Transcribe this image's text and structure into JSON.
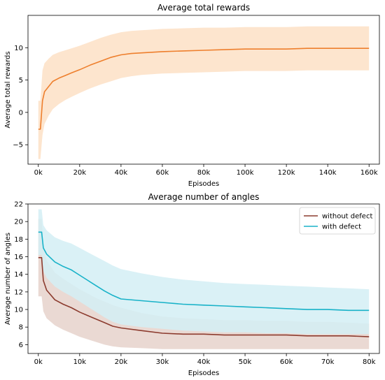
{
  "chart_data": [
    {
      "type": "line",
      "title": "Average total rewards",
      "xlabel": "Episodes",
      "ylabel": "Average total rewards",
      "xlim": [
        -5,
        165
      ],
      "ylim": [
        -8,
        15
      ],
      "x_unit": "k",
      "x_ticks": [
        0,
        20,
        40,
        60,
        80,
        100,
        120,
        140,
        160
      ],
      "x_tick_labels": [
        "0k",
        "20k",
        "40k",
        "60k",
        "80k",
        "100k",
        "120k",
        "140k",
        "160k"
      ],
      "y_ticks": [
        -5,
        0,
        5,
        10
      ],
      "y_tick_labels": [
        "−5",
        "0",
        "5",
        "10"
      ],
      "grid": false,
      "legend": null,
      "series": [
        {
          "color": "#ee7f2d",
          "band_color": "#fde0c6",
          "x": [
            0,
            1,
            2,
            3,
            5,
            7,
            10,
            13,
            16,
            20,
            25,
            30,
            35,
            40,
            45,
            50,
            55,
            60,
            70,
            80,
            90,
            100,
            110,
            120,
            130,
            140,
            150,
            160
          ],
          "y": [
            -2.6,
            -2.6,
            1.8,
            3.2,
            4.0,
            4.8,
            5.3,
            5.7,
            6.1,
            6.6,
            7.3,
            7.9,
            8.5,
            8.9,
            9.1,
            9.2,
            9.3,
            9.4,
            9.5,
            9.6,
            9.7,
            9.8,
            9.8,
            9.8,
            9.9,
            9.9,
            9.9,
            9.9
          ],
          "y_lower": [
            -7.2,
            -7.2,
            -3.5,
            -1.8,
            -0.5,
            0.5,
            1.3,
            1.9,
            2.4,
            3.0,
            3.7,
            4.3,
            4.8,
            5.3,
            5.6,
            5.8,
            5.9,
            6.0,
            6.1,
            6.2,
            6.3,
            6.4,
            6.4,
            6.4,
            6.5,
            6.5,
            6.5,
            6.5
          ],
          "y_upper": [
            1.8,
            1.8,
            6.5,
            7.6,
            8.3,
            8.9,
            9.3,
            9.6,
            9.9,
            10.3,
            10.9,
            11.5,
            12.0,
            12.4,
            12.6,
            12.7,
            12.8,
            12.9,
            13.0,
            13.1,
            13.1,
            13.2,
            13.2,
            13.2,
            13.3,
            13.3,
            13.3,
            13.3
          ]
        }
      ]
    },
    {
      "type": "line",
      "title": "Average number of angles",
      "xlabel": "Episodes",
      "ylabel": "Average number of angles",
      "xlim": [
        -2.5,
        82.5
      ],
      "ylim": [
        5,
        22
      ],
      "x_unit": "k",
      "x_ticks": [
        0,
        10,
        20,
        30,
        40,
        50,
        60,
        70,
        80
      ],
      "x_tick_labels": [
        "0k",
        "10k",
        "20k",
        "30k",
        "40k",
        "50k",
        "60k",
        "70k",
        "80k"
      ],
      "y_ticks": [
        6,
        8,
        10,
        12,
        14,
        16,
        18,
        20,
        22
      ],
      "y_tick_labels": [
        "6",
        "8",
        "10",
        "12",
        "14",
        "16",
        "18",
        "20",
        "22"
      ],
      "grid": false,
      "legend": "top-right",
      "series": [
        {
          "name": "without defect",
          "color": "#8c3b2e",
          "band_color": "#e6d2cb",
          "x": [
            0,
            0.8,
            1.2,
            2,
            4,
            6,
            8,
            10,
            12,
            14,
            16,
            18,
            20,
            25,
            30,
            35,
            40,
            45,
            50,
            55,
            60,
            65,
            70,
            75,
            80
          ],
          "y": [
            15.9,
            15.9,
            13.3,
            12.2,
            11.1,
            10.6,
            10.2,
            9.7,
            9.3,
            8.9,
            8.5,
            8.1,
            7.9,
            7.6,
            7.3,
            7.2,
            7.2,
            7.1,
            7.1,
            7.1,
            7.1,
            7.0,
            7.0,
            7.0,
            6.9
          ],
          "y_lower": [
            11.5,
            11.5,
            9.8,
            9.0,
            8.2,
            7.7,
            7.3,
            6.9,
            6.6,
            6.3,
            6.0,
            5.8,
            5.7,
            5.6,
            5.5,
            5.5,
            5.5,
            5.5,
            5.5,
            5.5,
            5.5,
            5.5,
            5.5,
            5.5,
            5.5
          ],
          "y_upper": [
            20.3,
            20.3,
            17.0,
            15.6,
            14.2,
            13.5,
            12.9,
            12.3,
            11.8,
            11.3,
            10.9,
            10.5,
            10.2,
            9.6,
            9.2,
            9.0,
            8.9,
            8.8,
            8.8,
            8.7,
            8.7,
            8.6,
            8.6,
            8.5,
            8.4
          ]
        },
        {
          "name": "with defect",
          "color": "#18b2c8",
          "band_color": "#d3eef5",
          "x": [
            0,
            0.8,
            1.2,
            2,
            4,
            6,
            8,
            10,
            12,
            14,
            16,
            18,
            20,
            25,
            30,
            35,
            40,
            45,
            50,
            55,
            60,
            65,
            70,
            75,
            80
          ],
          "y": [
            18.8,
            18.8,
            17.0,
            16.3,
            15.4,
            14.9,
            14.5,
            13.9,
            13.3,
            12.7,
            12.1,
            11.6,
            11.2,
            11.0,
            10.8,
            10.6,
            10.5,
            10.4,
            10.3,
            10.2,
            10.1,
            10.0,
            10.0,
            9.9,
            9.9
          ],
          "y_lower": [
            16.2,
            16.2,
            14.4,
            13.6,
            12.6,
            12.0,
            11.5,
            10.9,
            10.3,
            9.7,
            9.1,
            8.6,
            8.3,
            8.0,
            7.8,
            7.6,
            7.5,
            7.4,
            7.4,
            7.3,
            7.3,
            7.2,
            7.2,
            7.2,
            7.2
          ],
          "y_upper": [
            21.4,
            21.4,
            19.6,
            19.0,
            18.2,
            17.8,
            17.5,
            17.0,
            16.5,
            16.0,
            15.5,
            15.0,
            14.6,
            14.1,
            13.7,
            13.4,
            13.2,
            13.0,
            12.9,
            12.8,
            12.7,
            12.6,
            12.5,
            12.4,
            12.3
          ]
        }
      ]
    }
  ]
}
